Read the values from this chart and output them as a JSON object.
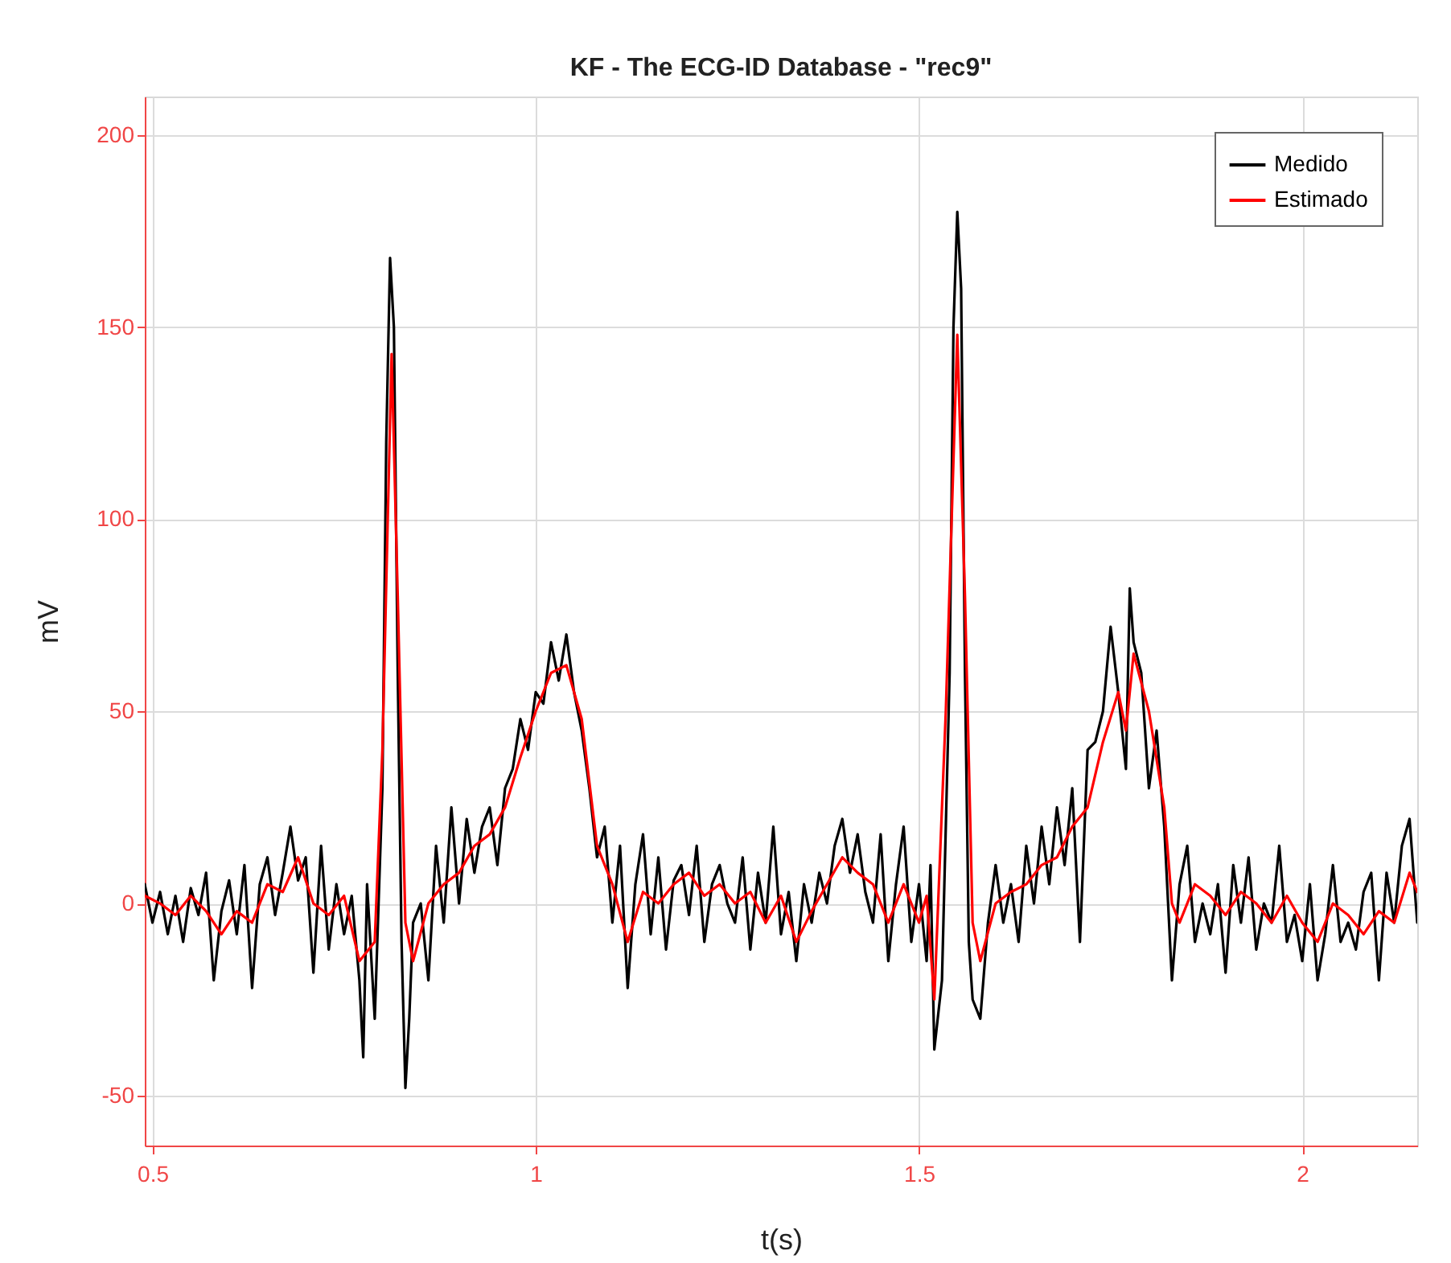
{
  "chart_data": {
    "type": "line",
    "title": "KF - The ECG-ID  Database - \"rec9\"",
    "xlabel": "t(s)",
    "ylabel": "mV",
    "xlim": [
      0.49,
      2.15
    ],
    "ylim": [
      -63,
      210
    ],
    "xticks": [
      0.5,
      1,
      1.5,
      2
    ],
    "yticks": [
      -50,
      0,
      50,
      100,
      150,
      200
    ],
    "grid": true,
    "legend": "top right",
    "line_style": "solid",
    "marker": "none",
    "series": [
      {
        "name": "Medido",
        "color": "#000000",
        "x": [
          0.49,
          0.5,
          0.51,
          0.52,
          0.53,
          0.54,
          0.55,
          0.56,
          0.57,
          0.58,
          0.59,
          0.6,
          0.61,
          0.62,
          0.63,
          0.64,
          0.65,
          0.66,
          0.67,
          0.68,
          0.69,
          0.7,
          0.71,
          0.72,
          0.73,
          0.74,
          0.75,
          0.76,
          0.77,
          0.775,
          0.78,
          0.79,
          0.8,
          0.805,
          0.81,
          0.815,
          0.82,
          0.825,
          0.83,
          0.835,
          0.84,
          0.85,
          0.86,
          0.87,
          0.88,
          0.89,
          0.9,
          0.91,
          0.92,
          0.93,
          0.94,
          0.95,
          0.96,
          0.97,
          0.98,
          0.99,
          1.0,
          1.01,
          1.02,
          1.03,
          1.04,
          1.05,
          1.06,
          1.07,
          1.08,
          1.09,
          1.1,
          1.11,
          1.12,
          1.13,
          1.14,
          1.15,
          1.16,
          1.17,
          1.18,
          1.19,
          1.2,
          1.21,
          1.22,
          1.23,
          1.24,
          1.25,
          1.26,
          1.27,
          1.28,
          1.29,
          1.3,
          1.31,
          1.32,
          1.33,
          1.34,
          1.35,
          1.36,
          1.37,
          1.38,
          1.39,
          1.4,
          1.41,
          1.42,
          1.43,
          1.44,
          1.45,
          1.46,
          1.47,
          1.48,
          1.49,
          1.5,
          1.51,
          1.515,
          1.52,
          1.53,
          1.54,
          1.545,
          1.55,
          1.555,
          1.56,
          1.565,
          1.57,
          1.58,
          1.59,
          1.6,
          1.61,
          1.62,
          1.63,
          1.64,
          1.65,
          1.66,
          1.67,
          1.68,
          1.69,
          1.7,
          1.71,
          1.72,
          1.73,
          1.74,
          1.75,
          1.76,
          1.77,
          1.775,
          1.78,
          1.79,
          1.8,
          1.81,
          1.82,
          1.83,
          1.84,
          1.85,
          1.86,
          1.87,
          1.88,
          1.89,
          1.9,
          1.91,
          1.92,
          1.93,
          1.94,
          1.95,
          1.96,
          1.97,
          1.98,
          1.99,
          2.0,
          2.01,
          2.02,
          2.03,
          2.04,
          2.05,
          2.06,
          2.07,
          2.08,
          2.09,
          2.1,
          2.11,
          2.12,
          2.13,
          2.14,
          2.15
        ],
        "values": [
          5,
          -5,
          3,
          -8,
          2,
          -10,
          4,
          -3,
          8,
          -20,
          -2,
          6,
          -8,
          10,
          -22,
          5,
          12,
          -3,
          8,
          20,
          6,
          12,
          -18,
          15,
          -12,
          5,
          -8,
          2,
          -20,
          -40,
          5,
          -30,
          30,
          120,
          168,
          150,
          60,
          -10,
          -48,
          -30,
          -5,
          0,
          -20,
          15,
          -5,
          25,
          0,
          22,
          8,
          20,
          25,
          10,
          30,
          35,
          48,
          40,
          55,
          52,
          68,
          58,
          70,
          55,
          45,
          30,
          12,
          20,
          -5,
          15,
          -22,
          5,
          18,
          -8,
          12,
          -12,
          6,
          10,
          -3,
          15,
          -10,
          5,
          10,
          0,
          -5,
          12,
          -12,
          8,
          -5,
          20,
          -8,
          3,
          -15,
          5,
          -5,
          8,
          0,
          15,
          22,
          8,
          18,
          3,
          -5,
          18,
          -15,
          5,
          20,
          -10,
          5,
          -15,
          10,
          -38,
          -20,
          60,
          150,
          180,
          160,
          60,
          -10,
          -25,
          -30,
          -5,
          10,
          -5,
          5,
          -10,
          15,
          0,
          20,
          5,
          25,
          10,
          30,
          -10,
          40,
          42,
          50,
          72,
          55,
          35,
          82,
          68,
          60,
          30,
          45,
          20,
          -20,
          5,
          15,
          -10,
          0,
          -8,
          5,
          -18,
          10,
          -5,
          12,
          -12,
          0,
          -5,
          15,
          -10,
          -3,
          -15,
          5,
          -20,
          -8,
          10,
          -10,
          -5,
          -12,
          3,
          8,
          -20,
          8,
          -5,
          15,
          22,
          -5
        ]
      },
      {
        "name": "Estimado",
        "color": "#ff0000",
        "x": [
          0.49,
          0.51,
          0.53,
          0.55,
          0.57,
          0.59,
          0.61,
          0.63,
          0.65,
          0.67,
          0.69,
          0.71,
          0.73,
          0.75,
          0.77,
          0.79,
          0.8,
          0.812,
          0.82,
          0.83,
          0.84,
          0.86,
          0.88,
          0.9,
          0.92,
          0.94,
          0.96,
          0.98,
          1.0,
          1.02,
          1.04,
          1.06,
          1.08,
          1.1,
          1.12,
          1.14,
          1.16,
          1.18,
          1.2,
          1.22,
          1.24,
          1.26,
          1.28,
          1.3,
          1.32,
          1.34,
          1.36,
          1.38,
          1.4,
          1.42,
          1.44,
          1.46,
          1.48,
          1.5,
          1.51,
          1.52,
          1.535,
          1.55,
          1.56,
          1.57,
          1.58,
          1.6,
          1.62,
          1.64,
          1.66,
          1.68,
          1.7,
          1.72,
          1.74,
          1.76,
          1.77,
          1.78,
          1.8,
          1.82,
          1.83,
          1.84,
          1.86,
          1.88,
          1.9,
          1.92,
          1.94,
          1.96,
          1.98,
          2.0,
          2.02,
          2.04,
          2.06,
          2.08,
          2.1,
          2.12,
          2.14,
          2.15
        ],
        "values": [
          2,
          0,
          -3,
          2,
          -2,
          -8,
          -2,
          -5,
          5,
          3,
          12,
          0,
          -3,
          2,
          -15,
          -10,
          40,
          143,
          80,
          -5,
          -15,
          0,
          5,
          8,
          15,
          18,
          25,
          38,
          50,
          60,
          62,
          48,
          15,
          5,
          -10,
          3,
          0,
          5,
          8,
          2,
          5,
          0,
          3,
          -5,
          2,
          -10,
          -2,
          5,
          12,
          8,
          5,
          -5,
          5,
          -5,
          2,
          -25,
          50,
          148,
          80,
          -5,
          -15,
          0,
          3,
          5,
          10,
          12,
          20,
          25,
          42,
          55,
          45,
          65,
          50,
          25,
          0,
          -5,
          5,
          2,
          -3,
          3,
          0,
          -5,
          2,
          -5,
          -10,
          0,
          -3,
          -8,
          -2,
          -5,
          8,
          3
        ]
      }
    ]
  }
}
